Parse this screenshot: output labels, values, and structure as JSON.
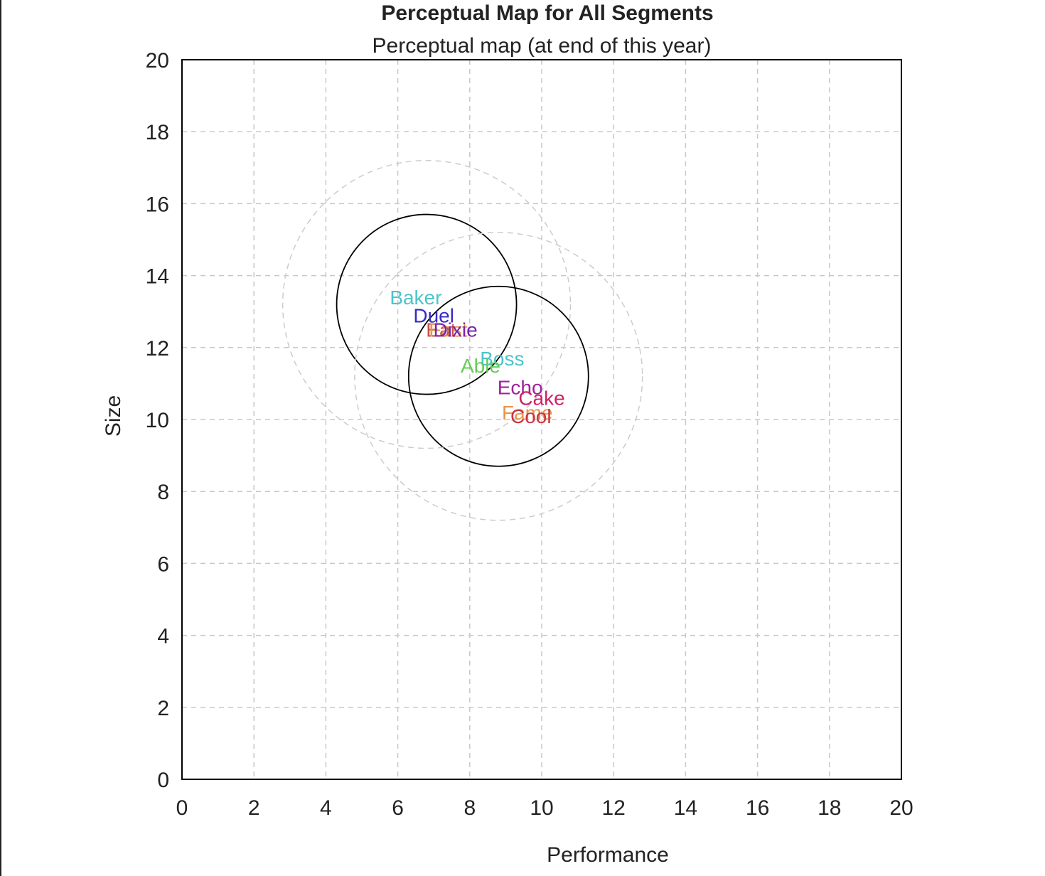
{
  "chart_data": {
    "type": "scatter",
    "title": "Perceptual Map for All Segments",
    "subtitle": "Perceptual map (at end of this year)",
    "xlabel": "Performance",
    "ylabel": "Size",
    "xlim": [
      0,
      20
    ],
    "ylim": [
      0,
      20
    ],
    "x_ticks": [
      0,
      2,
      4,
      6,
      8,
      10,
      12,
      14,
      16,
      18,
      20
    ],
    "y_ticks": [
      0,
      2,
      4,
      6,
      8,
      10,
      12,
      14,
      16,
      18,
      20
    ],
    "grid": true,
    "points": [
      {
        "label": "Baker",
        "x": 6.5,
        "y": 13.4,
        "color": "#4cc4cc"
      },
      {
        "label": "Duel",
        "x": 7.0,
        "y": 12.9,
        "color": "#3a2ac8"
      },
      {
        "label": "Eat",
        "x": 7.2,
        "y": 12.5,
        "color": "#c85050"
      },
      {
        "label": "Fast",
        "x": 7.4,
        "y": 12.5,
        "color": "#e8964a"
      },
      {
        "label": "Dixie",
        "x": 7.6,
        "y": 12.5,
        "color": "#7a22a8"
      },
      {
        "label": "Boss",
        "x": 8.9,
        "y": 11.7,
        "color": "#4cc4cc"
      },
      {
        "label": "Able",
        "x": 8.3,
        "y": 11.5,
        "color": "#66cc55"
      },
      {
        "label": "Echo",
        "x": 9.4,
        "y": 10.9,
        "color": "#a0229e"
      },
      {
        "label": "Cake",
        "x": 10.0,
        "y": 10.6,
        "color": "#cc2266"
      },
      {
        "label": "Fame",
        "x": 9.6,
        "y": 10.2,
        "color": "#e8964a"
      },
      {
        "label": "Cool",
        "x": 9.7,
        "y": 10.1,
        "color": "#cc3344"
      }
    ],
    "segments": [
      {
        "center_x": 6.8,
        "center_y": 13.2,
        "radius": 2.5,
        "style": "solid"
      },
      {
        "center_x": 8.8,
        "center_y": 11.2,
        "radius": 2.5,
        "style": "solid"
      },
      {
        "center_x": 6.8,
        "center_y": 13.2,
        "radius": 4.0,
        "style": "dashed"
      },
      {
        "center_x": 8.8,
        "center_y": 11.2,
        "radius": 4.0,
        "style": "dashed"
      }
    ],
    "colors": {
      "axis": "#000000",
      "grid": "#c8c8c8",
      "circle": "#000000",
      "outer_circle": "#cccccc",
      "text": "#222222"
    }
  }
}
